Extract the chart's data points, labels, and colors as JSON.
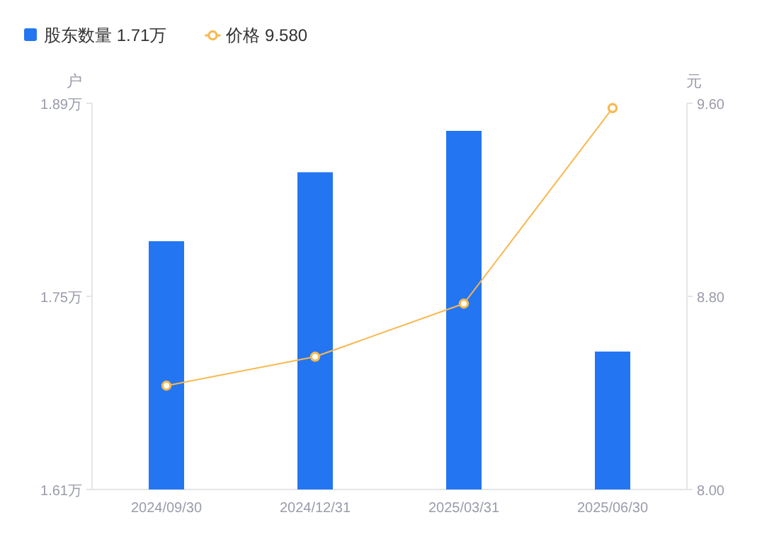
{
  "chart_data": {
    "type": "bar",
    "ylabel": "户",
    "y2label": "元",
    "categories": [
      "2024/09/30",
      "2024/12/31",
      "2025/03/31",
      "2025/06/30"
    ],
    "series": [
      {
        "name": "股东数量 1.71万",
        "color": "#2475f2",
        "values": [
          1.79,
          1.84,
          1.87,
          1.71
        ]
      },
      {
        "name": "价格 9.580",
        "color": "#f8b84e",
        "type": "line",
        "axis": "y2",
        "marker": "circle",
        "values": [
          8.43,
          8.55,
          8.77,
          9.58
        ]
      }
    ],
    "ylim": [
      1.61,
      1.89
    ],
    "yticks": [
      {
        "value": 1.61,
        "label": "1.61万"
      },
      {
        "value": 1.75,
        "label": "1.75万"
      },
      {
        "value": 1.89,
        "label": "1.89万"
      }
    ],
    "y2lim": [
      8.0,
      9.6
    ],
    "y2ticks": [
      {
        "value": 8.0,
        "label": "8.00"
      },
      {
        "value": 8.8,
        "label": "8.80"
      },
      {
        "value": 9.6,
        "label": "9.60"
      }
    ],
    "grid": false,
    "legend": "top left"
  }
}
